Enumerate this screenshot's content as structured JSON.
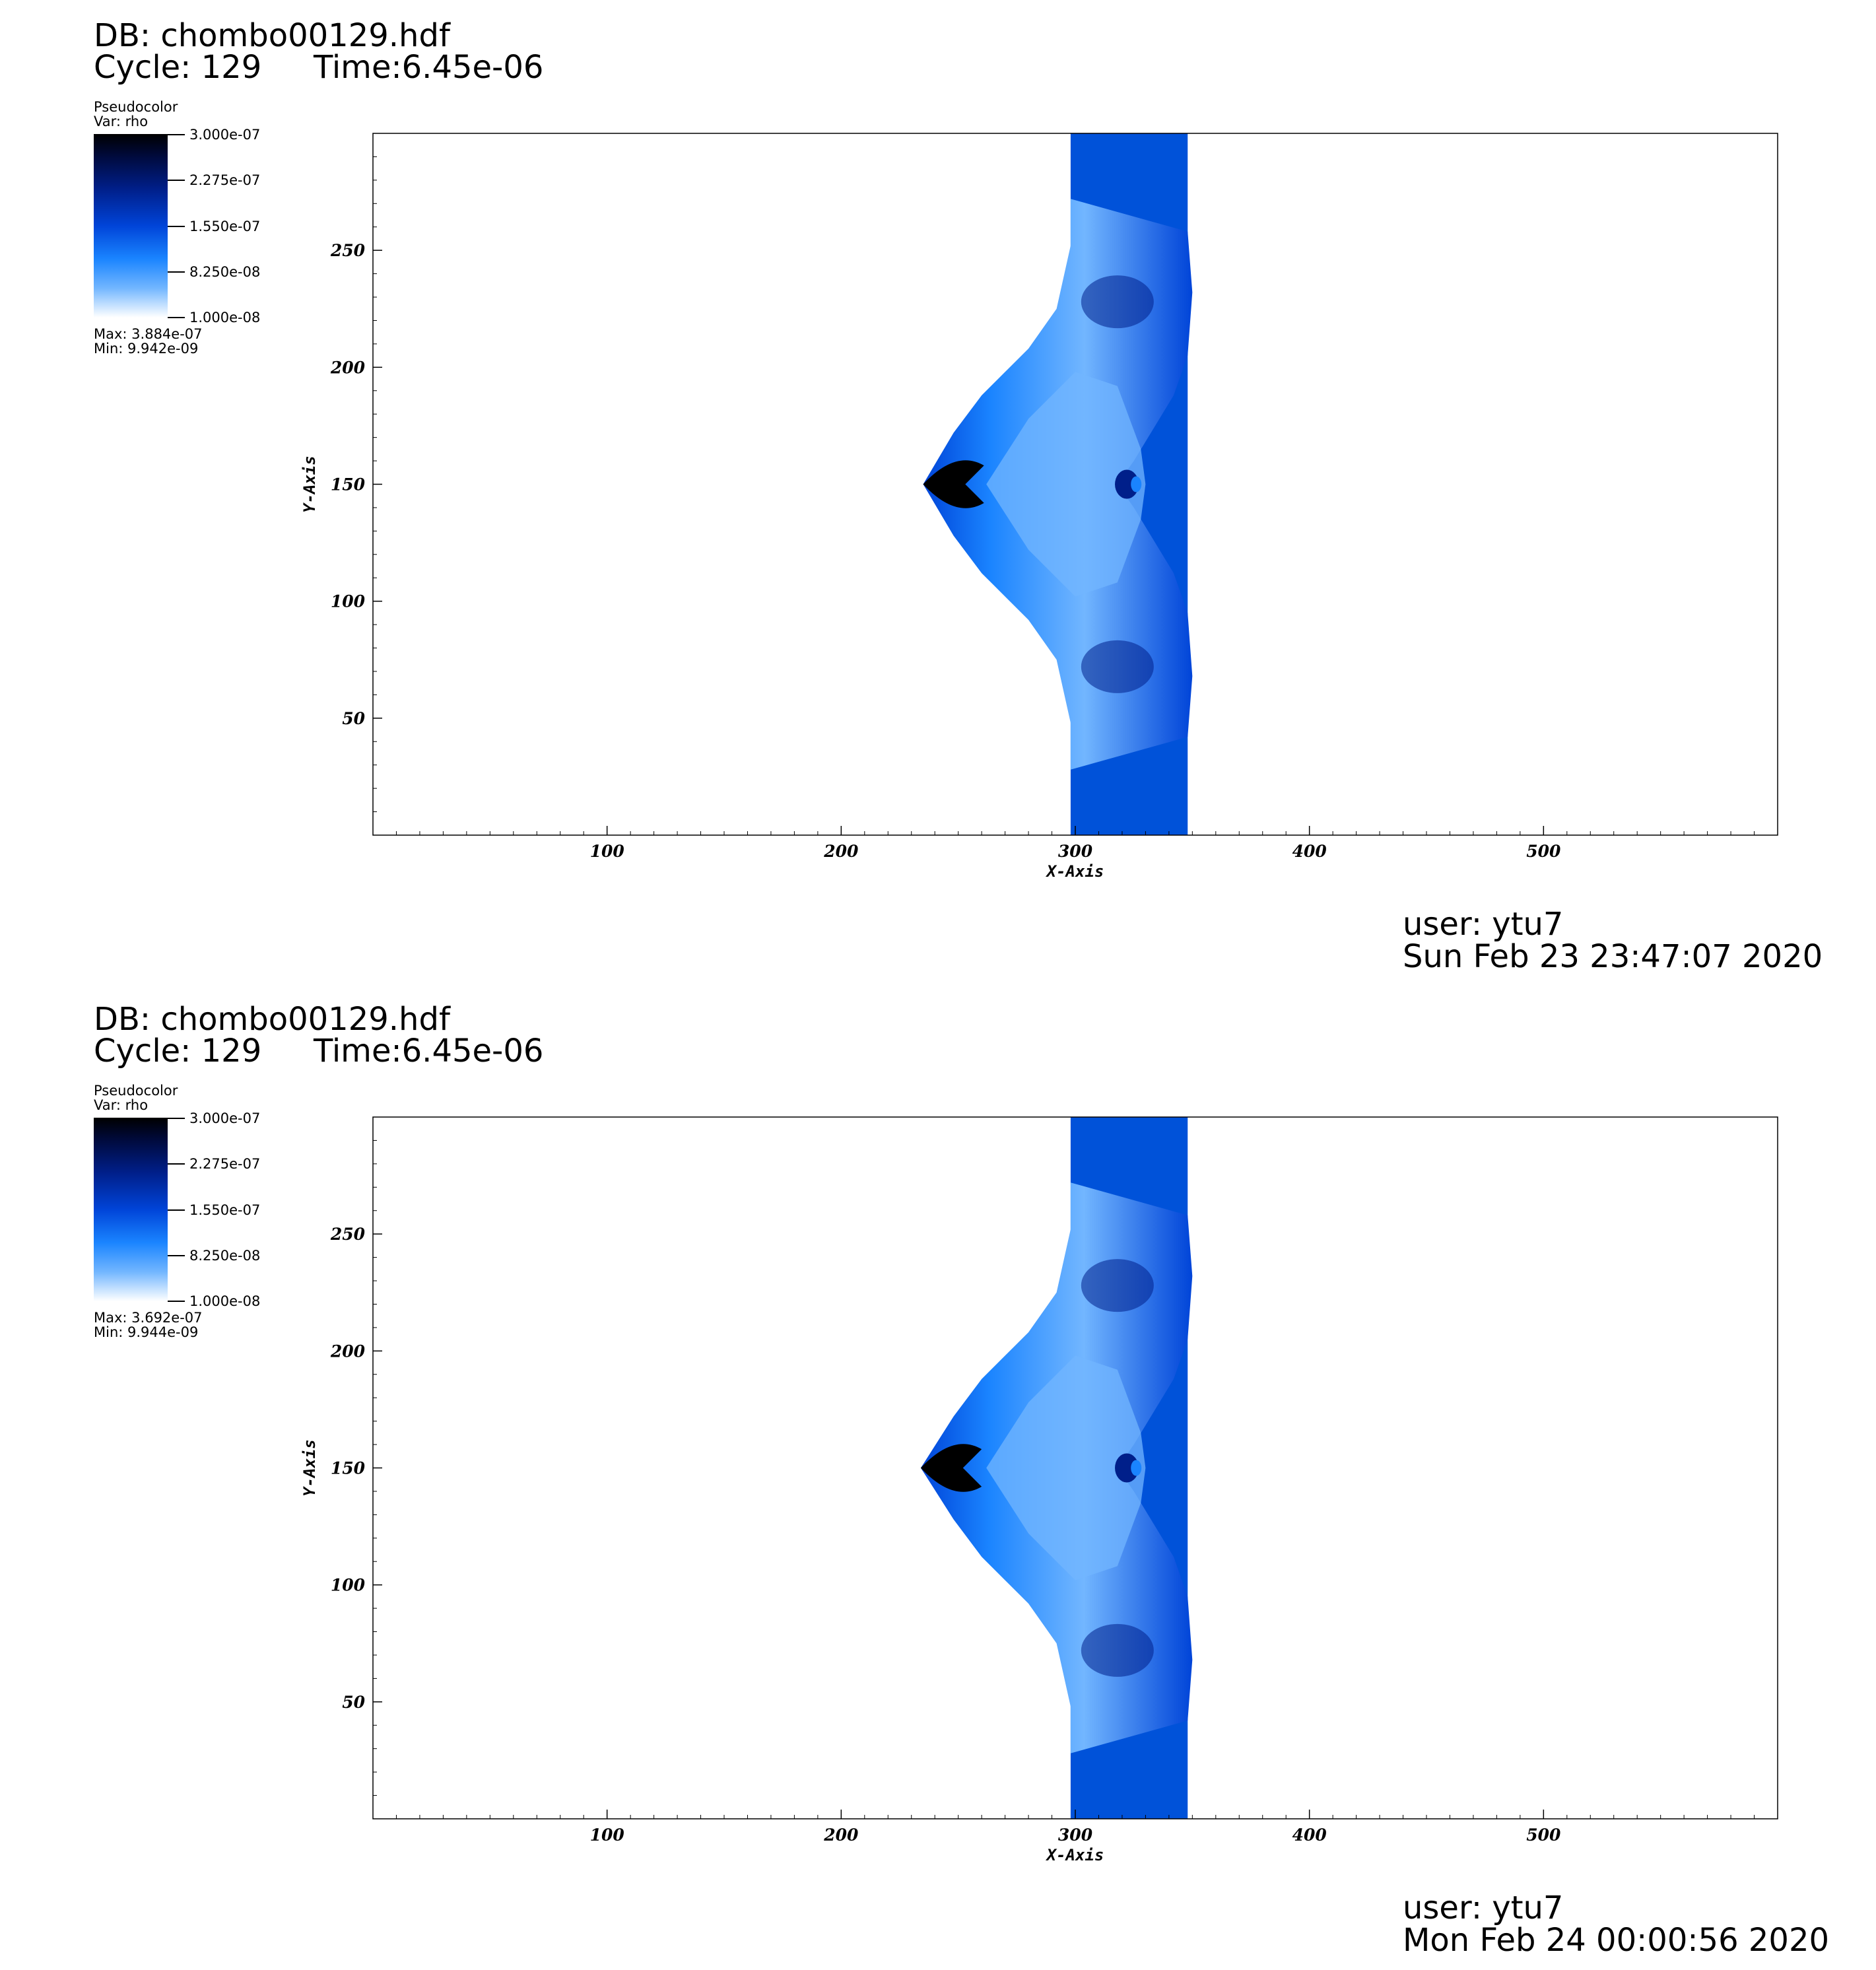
{
  "panels": [
    {
      "db": "DB: chombo00129.hdf",
      "cycle": "Cycle: 129",
      "time": "Time:6.45e-06",
      "legend": {
        "plot_type": "Pseudocolor",
        "var": "Var: rho",
        "ticks": [
          "3.000e-07",
          "2.275e-07",
          "1.550e-07",
          "8.250e-08",
          "1.000e-08"
        ],
        "max": "Max:  3.884e-07",
        "min": "Min:  9.942e-09"
      },
      "user": "user: ytu7",
      "date": "Sun Feb 23 23:47:07 2020"
    },
    {
      "db": "DB: chombo00129.hdf",
      "cycle": "Cycle: 129",
      "time": "Time:6.45e-06",
      "legend": {
        "plot_type": "Pseudocolor",
        "var": "Var: rho",
        "ticks": [
          "3.000e-07",
          "2.275e-07",
          "1.550e-07",
          "8.250e-08",
          "1.000e-08"
        ],
        "max": "Max:  3.692e-07",
        "min": "Min:  9.944e-09"
      },
      "user": "user: ytu7",
      "date": "Mon Feb 24 00:00:56 2020"
    }
  ],
  "chart_data": [
    {
      "type": "heatmap",
      "variable": "rho",
      "colormap": [
        "#ffffff",
        "#72b6ff",
        "#1a84ff",
        "#0044d8",
        "#001f8a",
        "#000000"
      ],
      "color_range": [
        1e-08,
        3e-07
      ],
      "xlabel": "X-Axis",
      "ylabel": "Y-Axis",
      "xlim": [
        0,
        600
      ],
      "ylim": [
        0,
        300
      ],
      "xticks": [
        100,
        200,
        300,
        400,
        500
      ],
      "yticks": [
        50,
        100,
        150,
        200,
        250
      ],
      "xtick_labels": [
        "100",
        "200",
        "300",
        "400",
        "500"
      ],
      "ytick_labels": [
        "50",
        "100",
        "150",
        "200",
        "250"
      ],
      "features": {
        "slab_x": [
          298,
          348
        ],
        "front_tip": [
          235,
          150
        ],
        "bubble": [
          322,
          150
        ]
      }
    },
    {
      "type": "heatmap",
      "variable": "rho",
      "colormap": [
        "#ffffff",
        "#72b6ff",
        "#1a84ff",
        "#0044d8",
        "#001f8a",
        "#000000"
      ],
      "color_range": [
        1e-08,
        3e-07
      ],
      "xlabel": "X-Axis",
      "ylabel": "Y-Axis",
      "xlim": [
        0,
        600
      ],
      "ylim": [
        0,
        300
      ],
      "xticks": [
        100,
        200,
        300,
        400,
        500
      ],
      "yticks": [
        50,
        100,
        150,
        200,
        250
      ],
      "xtick_labels": [
        "100",
        "200",
        "300",
        "400",
        "500"
      ],
      "ytick_labels": [
        "50",
        "100",
        "150",
        "200",
        "250"
      ],
      "features": {
        "slab_x": [
          298,
          348
        ],
        "front_tip": [
          234,
          150
        ],
        "bubble": [
          322,
          150
        ]
      }
    }
  ]
}
